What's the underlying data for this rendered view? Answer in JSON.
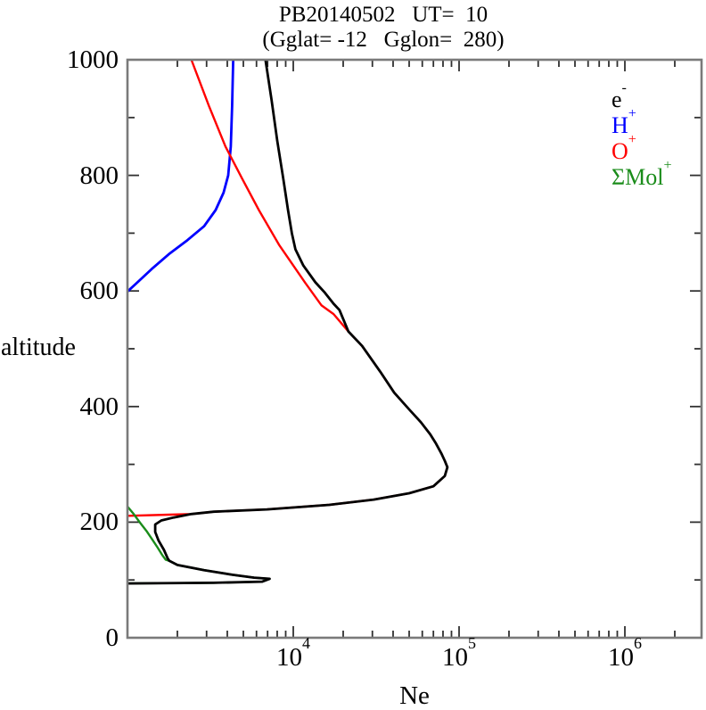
{
  "title": {
    "line1": "PB20140502   UT=  10",
    "line2": "(Gglat= -12   Gglon=  280)"
  },
  "axes": {
    "x": {
      "label": "Ne",
      "scale": "log",
      "min": 1000,
      "max": 2900000,
      "major_ticks": [
        {
          "value": 10000,
          "base": "10",
          "exp": "4"
        },
        {
          "value": 100000,
          "base": "10",
          "exp": "5"
        },
        {
          "value": 1000000,
          "base": "10",
          "exp": "6"
        }
      ]
    },
    "y": {
      "label": "altitude",
      "scale": "linear",
      "min": 0,
      "max": 1000,
      "minor_step": 100,
      "major_ticks": [
        {
          "value": 0,
          "label": "0"
        },
        {
          "value": 200,
          "label": "200"
        },
        {
          "value": 400,
          "label": "400"
        },
        {
          "value": 600,
          "label": "600"
        },
        {
          "value": 800,
          "label": "800"
        },
        {
          "value": 1000,
          "label": "1000"
        }
      ]
    }
  },
  "legend": {
    "items": [
      {
        "base": "e",
        "sup": "-",
        "color": "#000000"
      },
      {
        "base": "H",
        "sup": "+",
        "color": "#0000ff"
      },
      {
        "base": "O",
        "sup": "+",
        "color": "#ff0000"
      },
      {
        "base": "ΣMol",
        "sup": "+",
        "color": "#1a8c1a"
      }
    ]
  },
  "chart_data": {
    "type": "line",
    "title": "PB20140502  UT= 10 (Gglat= -12  Gglon= 280)",
    "xlabel": "Ne",
    "ylabel": "altitude",
    "xscale": "log",
    "yscale": "linear",
    "xlim": [
      1000,
      2900000
    ],
    "ylim": [
      0,
      1000
    ],
    "grid": false,
    "legend_position": "upper-right-inside",
    "frame_color": "#7a7a7a",
    "tick_color": "#303030",
    "series": [
      {
        "name": "H+",
        "color": "#0000ff",
        "width": 2.8,
        "points": [
          [
            4340,
            1000
          ],
          [
            4280,
            920
          ],
          [
            4200,
            850
          ],
          [
            4050,
            800
          ],
          [
            3800,
            770
          ],
          [
            3400,
            740
          ],
          [
            2900,
            712
          ],
          [
            2300,
            688
          ],
          [
            1800,
            665
          ],
          [
            1400,
            638
          ],
          [
            1120,
            612
          ],
          [
            1000,
            599
          ]
        ]
      },
      {
        "name": "O+",
        "color": "#ff0000",
        "width": 2.4,
        "points": [
          [
            2430,
            1000
          ],
          [
            3100,
            920
          ],
          [
            3900,
            850
          ],
          [
            4900,
            795
          ],
          [
            6200,
            740
          ],
          [
            8200,
            680
          ],
          [
            11800,
            614
          ],
          [
            14800,
            575
          ],
          [
            17500,
            560
          ],
          [
            21500,
            530
          ],
          [
            26000,
            505
          ],
          [
            33500,
            460
          ],
          [
            40600,
            424
          ],
          [
            50000,
            395
          ],
          [
            58800,
            373
          ],
          [
            67000,
            352
          ],
          [
            72600,
            336
          ],
          [
            78500,
            318
          ],
          [
            82000,
            306
          ],
          [
            85000,
            295
          ],
          [
            82000,
            280
          ],
          [
            70000,
            262
          ],
          [
            50000,
            250
          ],
          [
            30600,
            239
          ],
          [
            16500,
            230
          ],
          [
            6950,
            222
          ],
          [
            3310,
            218
          ],
          [
            2430,
            214
          ],
          [
            1790,
            213
          ],
          [
            1000,
            211
          ]
        ]
      },
      {
        "name": "Sum Mol+",
        "color": "#1a8c1a",
        "width": 2.4,
        "points": [
          [
            1000,
            227
          ],
          [
            1090,
            214
          ],
          [
            1190,
            199
          ],
          [
            1300,
            185
          ],
          [
            1410,
            170
          ],
          [
            1520,
            156
          ],
          [
            1620,
            143
          ],
          [
            1700,
            135
          ],
          [
            1790,
            133
          ],
          [
            2000,
            126
          ],
          [
            2900,
            117
          ],
          [
            4300,
            109
          ],
          [
            5800,
            104
          ],
          [
            7200,
            102
          ],
          [
            6500,
            97
          ],
          [
            3300,
            95
          ],
          [
            1000,
            94
          ]
        ]
      },
      {
        "name": "e-",
        "color": "#000000",
        "width": 2.8,
        "points": [
          [
            6800,
            1000
          ],
          [
            7400,
            930
          ],
          [
            8000,
            860
          ],
          [
            8700,
            795
          ],
          [
            9300,
            740
          ],
          [
            9800,
            700
          ],
          [
            10300,
            672
          ],
          [
            11500,
            644
          ],
          [
            13600,
            615
          ],
          [
            15500,
            597
          ],
          [
            17500,
            578
          ],
          [
            19000,
            567
          ],
          [
            21500,
            530
          ],
          [
            26000,
            505
          ],
          [
            33500,
            460
          ],
          [
            40600,
            424
          ],
          [
            50000,
            395
          ],
          [
            58800,
            373
          ],
          [
            67000,
            352
          ],
          [
            72600,
            336
          ],
          [
            78500,
            318
          ],
          [
            82000,
            306
          ],
          [
            85000,
            295
          ],
          [
            82000,
            280
          ],
          [
            70000,
            262
          ],
          [
            50000,
            250
          ],
          [
            30600,
            239
          ],
          [
            16500,
            230
          ],
          [
            6950,
            222
          ],
          [
            3310,
            218
          ],
          [
            2430,
            214
          ],
          [
            1900,
            208
          ],
          [
            1600,
            203
          ],
          [
            1470,
            196
          ],
          [
            1470,
            183
          ],
          [
            1540,
            168
          ],
          [
            1660,
            152
          ],
          [
            1750,
            137
          ],
          [
            1790,
            133
          ],
          [
            2000,
            126
          ],
          [
            2900,
            117
          ],
          [
            4300,
            109
          ],
          [
            5800,
            104
          ],
          [
            7200,
            102
          ],
          [
            6500,
            97
          ],
          [
            3300,
            95
          ],
          [
            1000,
            94
          ]
        ]
      }
    ]
  }
}
